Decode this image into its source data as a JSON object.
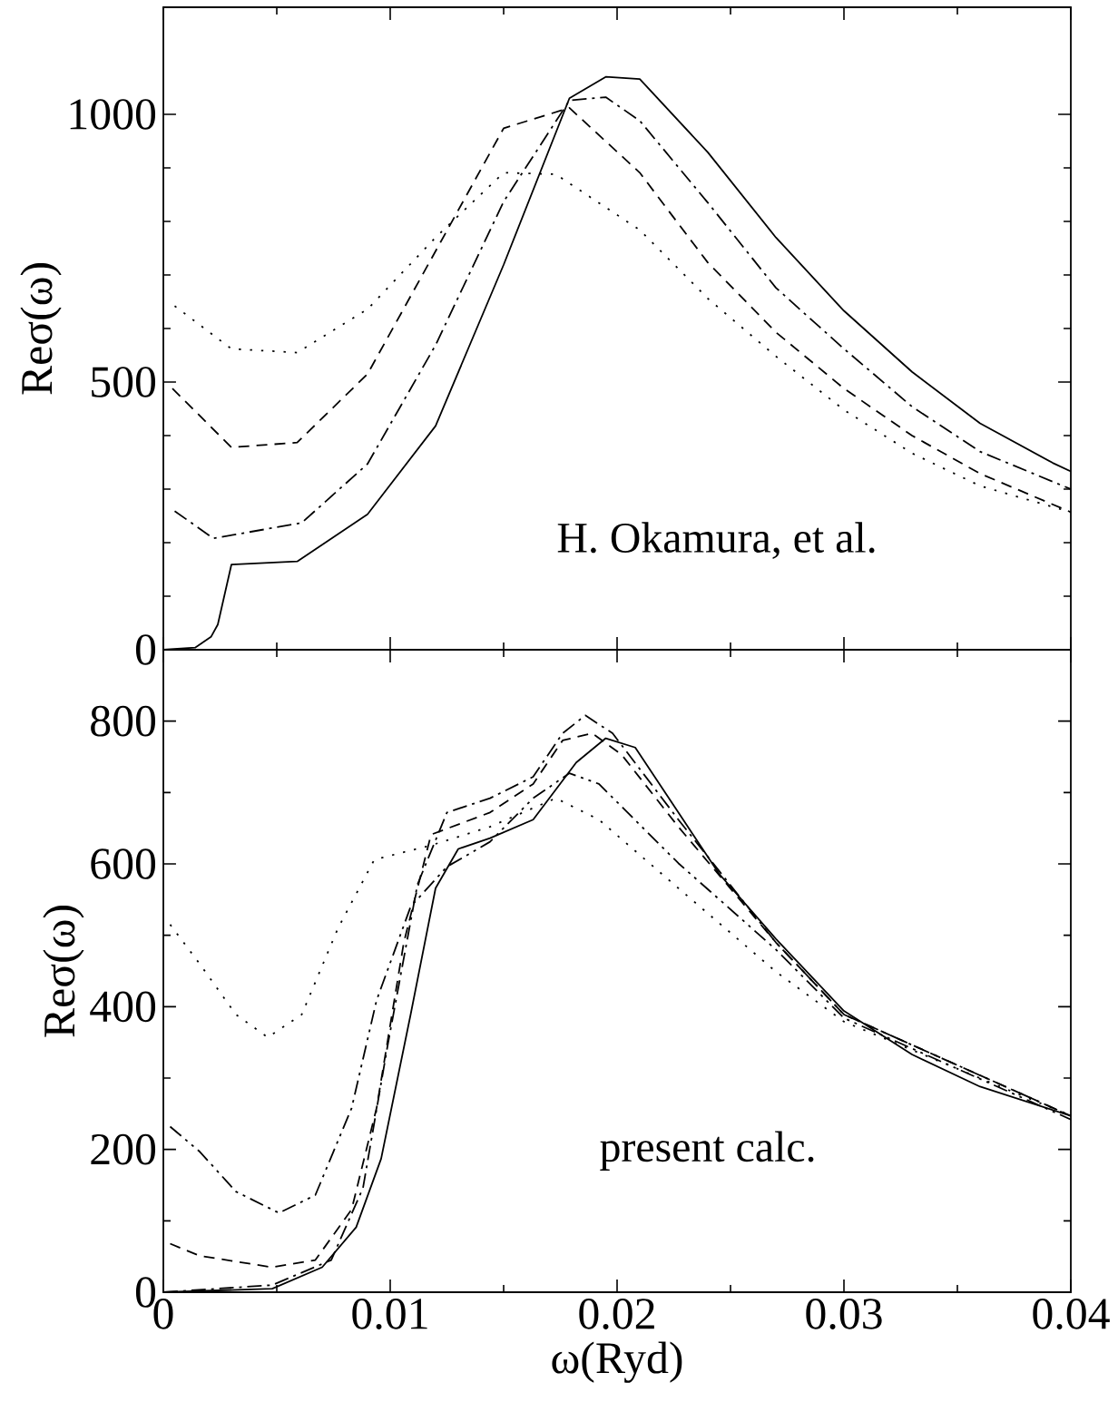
{
  "chart_data": [
    {
      "type": "line",
      "ylabel": "Reσ(ω)",
      "xlim": [
        0,
        0.04
      ],
      "ylim": [
        0,
        1200
      ],
      "tick_labels": "y",
      "xticks": [
        {
          "value": 0,
          "label": null
        },
        {
          "value": 0.01,
          "label": null
        },
        {
          "value": 0.02,
          "label": null
        },
        {
          "value": 0.03,
          "label": null
        },
        {
          "value": 0.04,
          "label": null
        }
      ],
      "yticks": [
        0,
        500,
        1000
      ],
      "annotations": [
        "H. Okamura, et al."
      ],
      "series": [
        {
          "color": "#000000",
          "line_style": "solid",
          "x": [
            0,
            0.0014,
            0.0021,
            0.0024,
            0.003,
            0.0059,
            0.009,
            0.012,
            0.015,
            0.0179,
            0.0195,
            0.021,
            0.024,
            0.027,
            0.03,
            0.033,
            0.036,
            0.0392,
            0.04
          ],
          "values": [
            0,
            4,
            24,
            47,
            159,
            165,
            253,
            418,
            719,
            1030,
            1070,
            1066,
            929,
            770,
            633,
            519,
            423,
            349,
            333
          ]
        },
        {
          "color": "#000000",
          "line_style": "dashed",
          "x": [
            0.0004,
            0.003,
            0.0059,
            0.009,
            0.015,
            0.0179,
            0.021,
            0.024,
            0.027,
            0.03,
            0.033,
            0.036,
            0.04
          ],
          "values": [
            488,
            378,
            387,
            515,
            974,
            1012,
            891,
            723,
            593,
            488,
            400,
            329,
            257
          ]
        },
        {
          "color": "#000000",
          "line_style": "dashdot",
          "x": [
            0.0005,
            0.0022,
            0.0061,
            0.009,
            0.012,
            0.015,
            0.0179,
            0.0195,
            0.021,
            0.024,
            0.027,
            0.03,
            0.033,
            0.036,
            0.04
          ],
          "values": [
            259,
            208,
            237,
            347,
            569,
            837,
            1026,
            1032,
            988,
            835,
            676,
            562,
            454,
            370,
            300
          ]
        },
        {
          "color": "#000000",
          "line_style": "dotted",
          "x": [
            0.0005,
            0.003,
            0.0059,
            0.009,
            0.012,
            0.015,
            0.0173,
            0.021,
            0.024,
            0.027,
            0.03,
            0.033,
            0.036,
            0.04
          ],
          "values": [
            642,
            562,
            555,
            636,
            770,
            891,
            888,
            784,
            656,
            548,
            448,
            367,
            306,
            257
          ]
        }
      ]
    },
    {
      "type": "line",
      "xlabel": "ω(Ryd)",
      "ylabel": "Reσ(ω)",
      "xlim": [
        0,
        0.04
      ],
      "ylim": [
        0,
        900
      ],
      "xticks": [
        0,
        0.01,
        0.02,
        0.03,
        0.04
      ],
      "yticks": [
        0,
        200,
        400,
        600,
        800
      ],
      "annotations": [
        "present calc."
      ],
      "series": [
        {
          "color": "#000000",
          "line_style": "solid",
          "x": [
            0,
            0.0048,
            0.007,
            0.0085,
            0.0096,
            0.0109,
            0.012,
            0.013,
            0.0144,
            0.0163,
            0.0182,
            0.0195,
            0.0208,
            0.0227,
            0.0245,
            0.027,
            0.03,
            0.033,
            0.036,
            0.04
          ],
          "values": [
            0,
            5,
            35,
            91,
            187,
            389,
            566,
            621,
            636,
            662,
            742,
            776,
            763,
            672,
            586,
            495,
            394,
            333,
            288,
            247
          ]
        },
        {
          "color": "#000000",
          "line_style": "dashed",
          "x": [
            0.0003,
            0.0016,
            0.0048,
            0.0067,
            0.0083,
            0.0094,
            0.0106,
            0.0118,
            0.0144,
            0.0163,
            0.0176,
            0.0189,
            0.0202,
            0.0227,
            0.027,
            0.03,
            0.04
          ],
          "values": [
            68,
            51,
            35,
            45,
            116,
            258,
            490,
            641,
            672,
            712,
            773,
            783,
            753,
            652,
            490,
            389,
            247
          ]
        },
        {
          "color": "#000000",
          "line_style": "dashdot",
          "x": [
            0,
            0.0048,
            0.0074,
            0.0088,
            0.0099,
            0.0112,
            0.0125,
            0.0144,
            0.0163,
            0.0176,
            0.0186,
            0.0198,
            0.0227,
            0.027,
            0.03,
            0.04
          ],
          "values": [
            0,
            10,
            45,
            146,
            348,
            571,
            672,
            692,
            722,
            783,
            808,
            783,
            662,
            490,
            389,
            247
          ]
        },
        {
          "color": "#000000",
          "line_style": "dashdotdot",
          "x": [
            0.0003,
            0.0016,
            0.0032,
            0.0051,
            0.0067,
            0.0083,
            0.0094,
            0.0109,
            0.0125,
            0.0144,
            0.0163,
            0.0179,
            0.0192,
            0.0227,
            0.027,
            0.03,
            0.04
          ],
          "values": [
            232,
            197,
            141,
            111,
            136,
            258,
            409,
            540,
            596,
            631,
            692,
            727,
            712,
            601,
            480,
            384,
            242
          ]
        },
        {
          "color": "#000000",
          "line_style": "dotted",
          "x": [
            0.0003,
            0.0016,
            0.0032,
            0.0046,
            0.0061,
            0.0077,
            0.0093,
            0.0118,
            0.0144,
            0.0173,
            0.0192,
            0.0227,
            0.027,
            0.03,
            0.04
          ],
          "values": [
            515,
            460,
            389,
            357,
            389,
            510,
            606,
            626,
            652,
            692,
            662,
            566,
            449,
            379,
            247
          ]
        }
      ]
    }
  ]
}
